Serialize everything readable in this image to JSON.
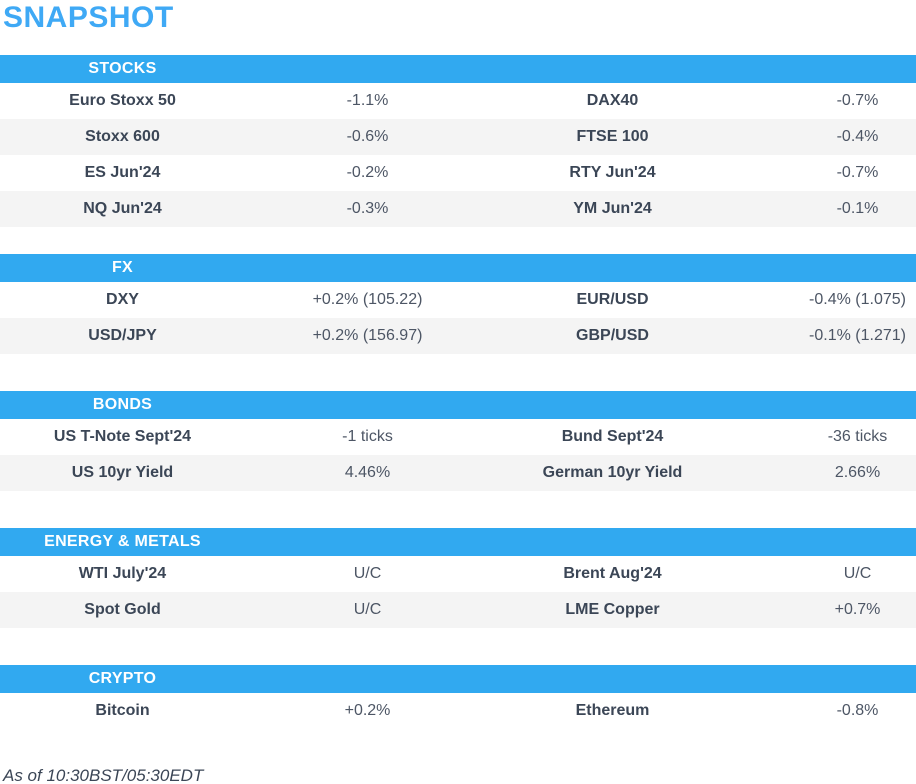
{
  "title": "SNAPSHOT",
  "footer": "As of 10:30BST/05:30EDT",
  "colors": {
    "title": "#3fa9f5",
    "header_bar": "#31a9f0",
    "header_text": "#ffffff",
    "row_stripe": "#f4f4f4",
    "label_text": "#3b4656",
    "value_text": "#4d5665"
  },
  "sections": [
    {
      "name": "STOCKS",
      "rows": [
        [
          "Euro Stoxx 50",
          "-1.1%",
          "DAX40",
          "-0.7%"
        ],
        [
          "Stoxx 600",
          "-0.6%",
          "FTSE 100",
          "-0.4%"
        ],
        [
          "ES Jun'24",
          "-0.2%",
          "RTY Jun'24",
          "-0.7%"
        ],
        [
          "NQ Jun'24",
          "-0.3%",
          "YM Jun'24",
          "-0.1%"
        ]
      ]
    },
    {
      "name": "FX",
      "rows": [
        [
          "DXY",
          "+0.2% (105.22)",
          "EUR/USD",
          "-0.4% (1.075)"
        ],
        [
          "USD/JPY",
          "+0.2% (156.97)",
          "GBP/USD",
          "-0.1% (1.271)"
        ]
      ]
    },
    {
      "name": "BONDS",
      "rows": [
        [
          "US T-Note Sept'24",
          "-1 ticks",
          "Bund Sept'24",
          "-36 ticks"
        ],
        [
          "US 10yr Yield",
          "4.46%",
          "German 10yr Yield",
          "2.66%"
        ]
      ]
    },
    {
      "name": "ENERGY & METALS",
      "rows": [
        [
          "WTI July'24",
          "U/C",
          "Brent Aug'24",
          "U/C"
        ],
        [
          "Spot Gold",
          "U/C",
          "LME Copper",
          "+0.7%"
        ]
      ]
    },
    {
      "name": "CRYPTO",
      "rows": [
        [
          "Bitcoin",
          "+0.2%",
          "Ethereum",
          "-0.8%"
        ]
      ]
    }
  ]
}
